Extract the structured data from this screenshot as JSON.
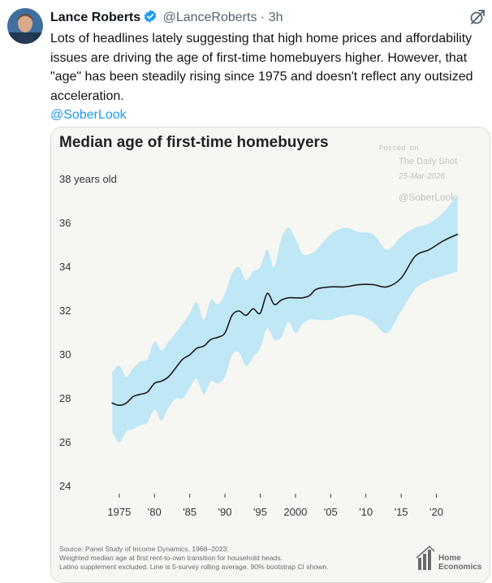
{
  "tweet": {
    "author_name": "Lance Roberts",
    "handle": "@LanceRoberts",
    "separator": "·",
    "time": "3h",
    "text_lines": [
      "Lots of headlines lately suggesting that high home prices and affordability",
      "issues are driving the age of first-time homebuyers higher.  However, that",
      "\"age\" has been steadily rising since 1975 and doesn't reflect any outsized",
      "acceleration."
    ],
    "mention": "@SoberLook"
  },
  "icons": {
    "verified": "verified-badge-icon",
    "grok": "grok-icon",
    "avatar": "avatar"
  },
  "colors": {
    "line": "#1b1b1b",
    "band": "#bfe7f5",
    "card_bg": "#f6f6f3",
    "link": "#1d9bf0",
    "verified": "#1d9bf0"
  },
  "chart_data": {
    "type": "line",
    "title": "Median age of first-time homebuyers",
    "ylabel": "38 years old",
    "ylim": [
      24,
      38
    ],
    "xlim": [
      1973,
      2024
    ],
    "y_ticks": [
      24,
      26,
      28,
      30,
      32,
      34,
      36,
      38
    ],
    "x_tick_values": [
      1975,
      1980,
      1985,
      1990,
      1995,
      2000,
      2005,
      2010,
      2015,
      2020
    ],
    "x_tick_labels": [
      "1975",
      "'80",
      "'85",
      "'90",
      "'95",
      "2000",
      "'05",
      "'10",
      "'15",
      "'20"
    ],
    "series": [
      {
        "name": "Median age (5-survey rolling average)",
        "x": [
          1974,
          1975,
          1976,
          1977,
          1978,
          1979,
          1980,
          1981,
          1982,
          1983,
          1984,
          1985,
          1986,
          1987,
          1988,
          1989,
          1990,
          1991,
          1992,
          1993,
          1994,
          1995,
          1996,
          1997,
          1998,
          1999,
          2000,
          2001,
          2002,
          2003,
          2005,
          2007,
          2009,
          2011,
          2013,
          2015,
          2017,
          2019,
          2021,
          2023
        ],
        "values": [
          27.8,
          27.7,
          27.8,
          28.1,
          28.2,
          28.3,
          28.7,
          28.8,
          29.0,
          29.4,
          29.8,
          30.0,
          30.3,
          30.4,
          30.7,
          30.8,
          31.0,
          31.8,
          32.0,
          31.8,
          32.1,
          31.9,
          32.8,
          32.3,
          32.5,
          32.6,
          32.6,
          32.6,
          32.7,
          33.0,
          33.1,
          33.1,
          33.2,
          33.2,
          33.1,
          33.5,
          34.5,
          34.8,
          35.2,
          35.5
        ]
      }
    ],
    "ci_band": {
      "name": "90% bootstrap CI",
      "x": [
        1974,
        1975,
        1976,
        1977,
        1978,
        1979,
        1980,
        1981,
        1982,
        1983,
        1984,
        1985,
        1986,
        1987,
        1988,
        1989,
        1990,
        1991,
        1992,
        1993,
        1994,
        1995,
        1996,
        1997,
        1998,
        1999,
        2000,
        2001,
        2002,
        2003,
        2005,
        2007,
        2009,
        2011,
        2013,
        2015,
        2017,
        2019,
        2021,
        2023
      ],
      "lower": [
        26.5,
        26.0,
        26.5,
        26.6,
        26.8,
        26.9,
        27.5,
        27.0,
        27.6,
        28.0,
        28.0,
        28.5,
        28.9,
        28.2,
        28.8,
        28.7,
        29.0,
        30.0,
        30.1,
        29.5,
        29.9,
        30.3,
        31.2,
        30.7,
        30.8,
        31.5,
        31.0,
        31.4,
        31.6,
        31.6,
        31.6,
        31.8,
        31.8,
        31.5,
        31.0,
        32.0,
        33.0,
        33.4,
        33.6,
        33.8
      ],
      "upper": [
        29.2,
        29.5,
        29.0,
        29.4,
        29.7,
        29.8,
        30.6,
        30.2,
        30.6,
        31.0,
        31.4,
        31.9,
        32.4,
        31.6,
        32.5,
        32.3,
        32.8,
        33.7,
        34.0,
        33.4,
        33.8,
        34.0,
        34.8,
        34.0,
        35.3,
        35.8,
        35.3,
        34.6,
        34.6,
        34.8,
        35.5,
        35.8,
        35.6,
        35.5,
        34.8,
        35.4,
        35.8,
        36.0,
        36.5,
        37.3
      ]
    },
    "watermark": {
      "posted_on": "Posted on",
      "source_name": "The Daily Shot",
      "date": "25-Mar-2026",
      "handle": "@SoberLook"
    },
    "source_lines": [
      "Source: Panel Study of Income Dynamics, 1968–2023.",
      "Weighted median age at first rent-to-own transition for household heads.",
      "Latino supplement excluded. Line is 5-survey rolling average. 90% bootstrap CI shown."
    ],
    "logo_lines": [
      "Home",
      "Economics"
    ]
  }
}
